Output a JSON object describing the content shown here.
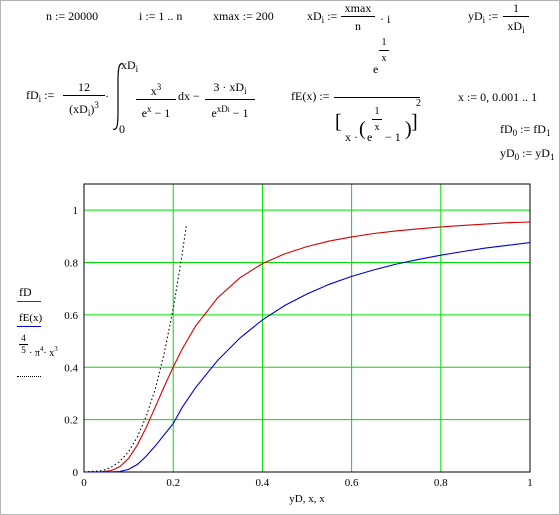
{
  "worksheet": {
    "row1": {
      "n_def": "n := 20000",
      "i_def": "i := 1 .. n",
      "xmax_def": "xmax := 200",
      "xD_lhs": "xD",
      "xD_sub": "i",
      "xD_assign": ":=",
      "xD_num": "xmax",
      "xD_den": "n",
      "xD_tail": "· i",
      "yD_lhs": "yD",
      "yD_sub": "i",
      "yD_assign": ":=",
      "yD_num": "1",
      "yD_den_main": "xD",
      "yD_den_sub": "i"
    },
    "row2": {
      "fD_lhs": "fD",
      "fD_sub": "i",
      "fD_assign": ":=",
      "fD_coef_num": "12",
      "fD_coef_den": "(xD",
      "fD_coef_den_sub": "i",
      "fD_coef_den_close": ")",
      "fD_coef_den_exp": "3",
      "dot1": "·",
      "int_upper": "xD",
      "int_upper_sub": "i",
      "int_lower": "0",
      "integrand_num": "x",
      "integrand_num_exp": "3",
      "integrand_den": "e",
      "integrand_den_exp": "x",
      "integrand_den_tail": "− 1",
      "dx": "dx −",
      "term2_num": "3 · xD",
      "term2_num_sub": "i",
      "term2_den": "e",
      "term2_den_exp": "xD",
      "term2_den_exp_sub": "i",
      "term2_den_tail": "− 1",
      "fE_lhs": "fE(x) :=",
      "fE_num_e": "e",
      "fE_num_exp_num": "1",
      "fE_num_exp_den": "x",
      "fE_den_x": "x ·",
      "fE_den_e": "e",
      "fE_den_exp_num": "1",
      "fE_den_exp_den": "x",
      "fE_den_tail": "− 1",
      "fE_den_exp": "2",
      "x_range": "x := 0, 0.001 .. 1",
      "fD0_lhs": "fD",
      "fD0_sub": "0",
      "fD0_rhs": ":= fD",
      "fD0_rhs_sub": "1",
      "yD0_lhs": "yD",
      "yD0_sub": "0",
      "yD0_rhs": ":= yD",
      "yD0_rhs_sub": "1"
    }
  },
  "legend": {
    "s1_label": "fD",
    "s2_label": "fE(x)",
    "s3_num": "4",
    "s3_den": "5",
    "s3_tail": "· π",
    "s3_pi_exp": "4",
    "s3_x": "· x",
    "s3_x_exp": "3"
  },
  "colors": {
    "fD": "#d40000",
    "fE": "#0000d4",
    "approx": "#000000",
    "grid": "#00dd00"
  },
  "chart_data": {
    "type": "line",
    "xlabel": "yD, x, x",
    "ylabel": "",
    "xlim": [
      0,
      1
    ],
    "ylim": [
      0,
      1.1
    ],
    "xticks": [
      "0",
      "0.2",
      "0.4",
      "0.6",
      "0.8",
      "1"
    ],
    "yticks": [
      "0",
      "0.2",
      "0.4",
      "0.6",
      "0.8",
      "1"
    ],
    "grid": true,
    "series": [
      {
        "name": "fD",
        "style": "solid",
        "color": "#d40000",
        "x": [
          0,
          0.04,
          0.06,
          0.08,
          0.1,
          0.12,
          0.14,
          0.16,
          0.18,
          0.2,
          0.22,
          0.25,
          0.3,
          0.35,
          0.4,
          0.45,
          0.5,
          0.55,
          0.6,
          0.65,
          0.7,
          0.75,
          0.8,
          0.85,
          0.9,
          0.95,
          1.0
        ],
        "y": [
          0,
          0.001,
          0.005,
          0.02,
          0.052,
          0.104,
          0.172,
          0.249,
          0.327,
          0.401,
          0.469,
          0.557,
          0.666,
          0.742,
          0.796,
          0.833,
          0.861,
          0.882,
          0.898,
          0.911,
          0.921,
          0.929,
          0.936,
          0.942,
          0.947,
          0.952,
          0.955
        ]
      },
      {
        "name": "fE(x)",
        "style": "solid",
        "color": "#0000d4",
        "x": [
          0,
          0.06,
          0.08,
          0.1,
          0.12,
          0.14,
          0.16,
          0.18,
          0.2,
          0.22,
          0.25,
          0.3,
          0.35,
          0.4,
          0.45,
          0.5,
          0.55,
          0.6,
          0.65,
          0.7,
          0.75,
          0.8,
          0.85,
          0.9,
          0.95,
          1.0
        ],
        "y": [
          0,
          0.0002,
          0.002,
          0.01,
          0.029,
          0.061,
          0.1,
          0.143,
          0.185,
          0.246,
          0.322,
          0.427,
          0.512,
          0.581,
          0.636,
          0.68,
          0.717,
          0.747,
          0.772,
          0.794,
          0.812,
          0.828,
          0.842,
          0.855,
          0.866,
          0.876
        ]
      },
      {
        "name": "4/5 · π^4 · x^3",
        "style": "dotted",
        "color": "#000000",
        "x": [
          0,
          0.04,
          0.06,
          0.08,
          0.1,
          0.12,
          0.14,
          0.16,
          0.18,
          0.2,
          0.22,
          0.23
        ],
        "y": [
          0,
          0.005,
          0.017,
          0.04,
          0.078,
          0.135,
          0.214,
          0.319,
          0.455,
          0.623,
          0.83,
          0.948
        ]
      }
    ]
  }
}
